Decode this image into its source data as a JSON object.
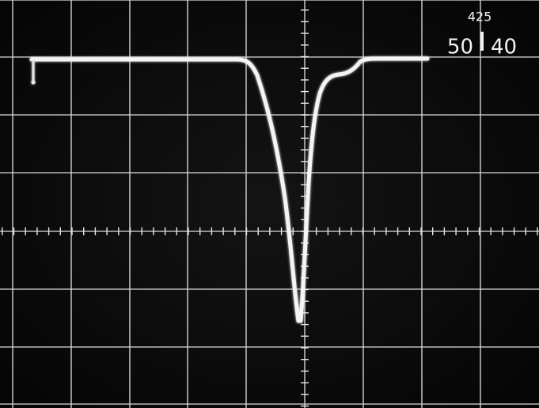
{
  "readout": {
    "top": "425",
    "left": "50",
    "right": "40"
  }
}
